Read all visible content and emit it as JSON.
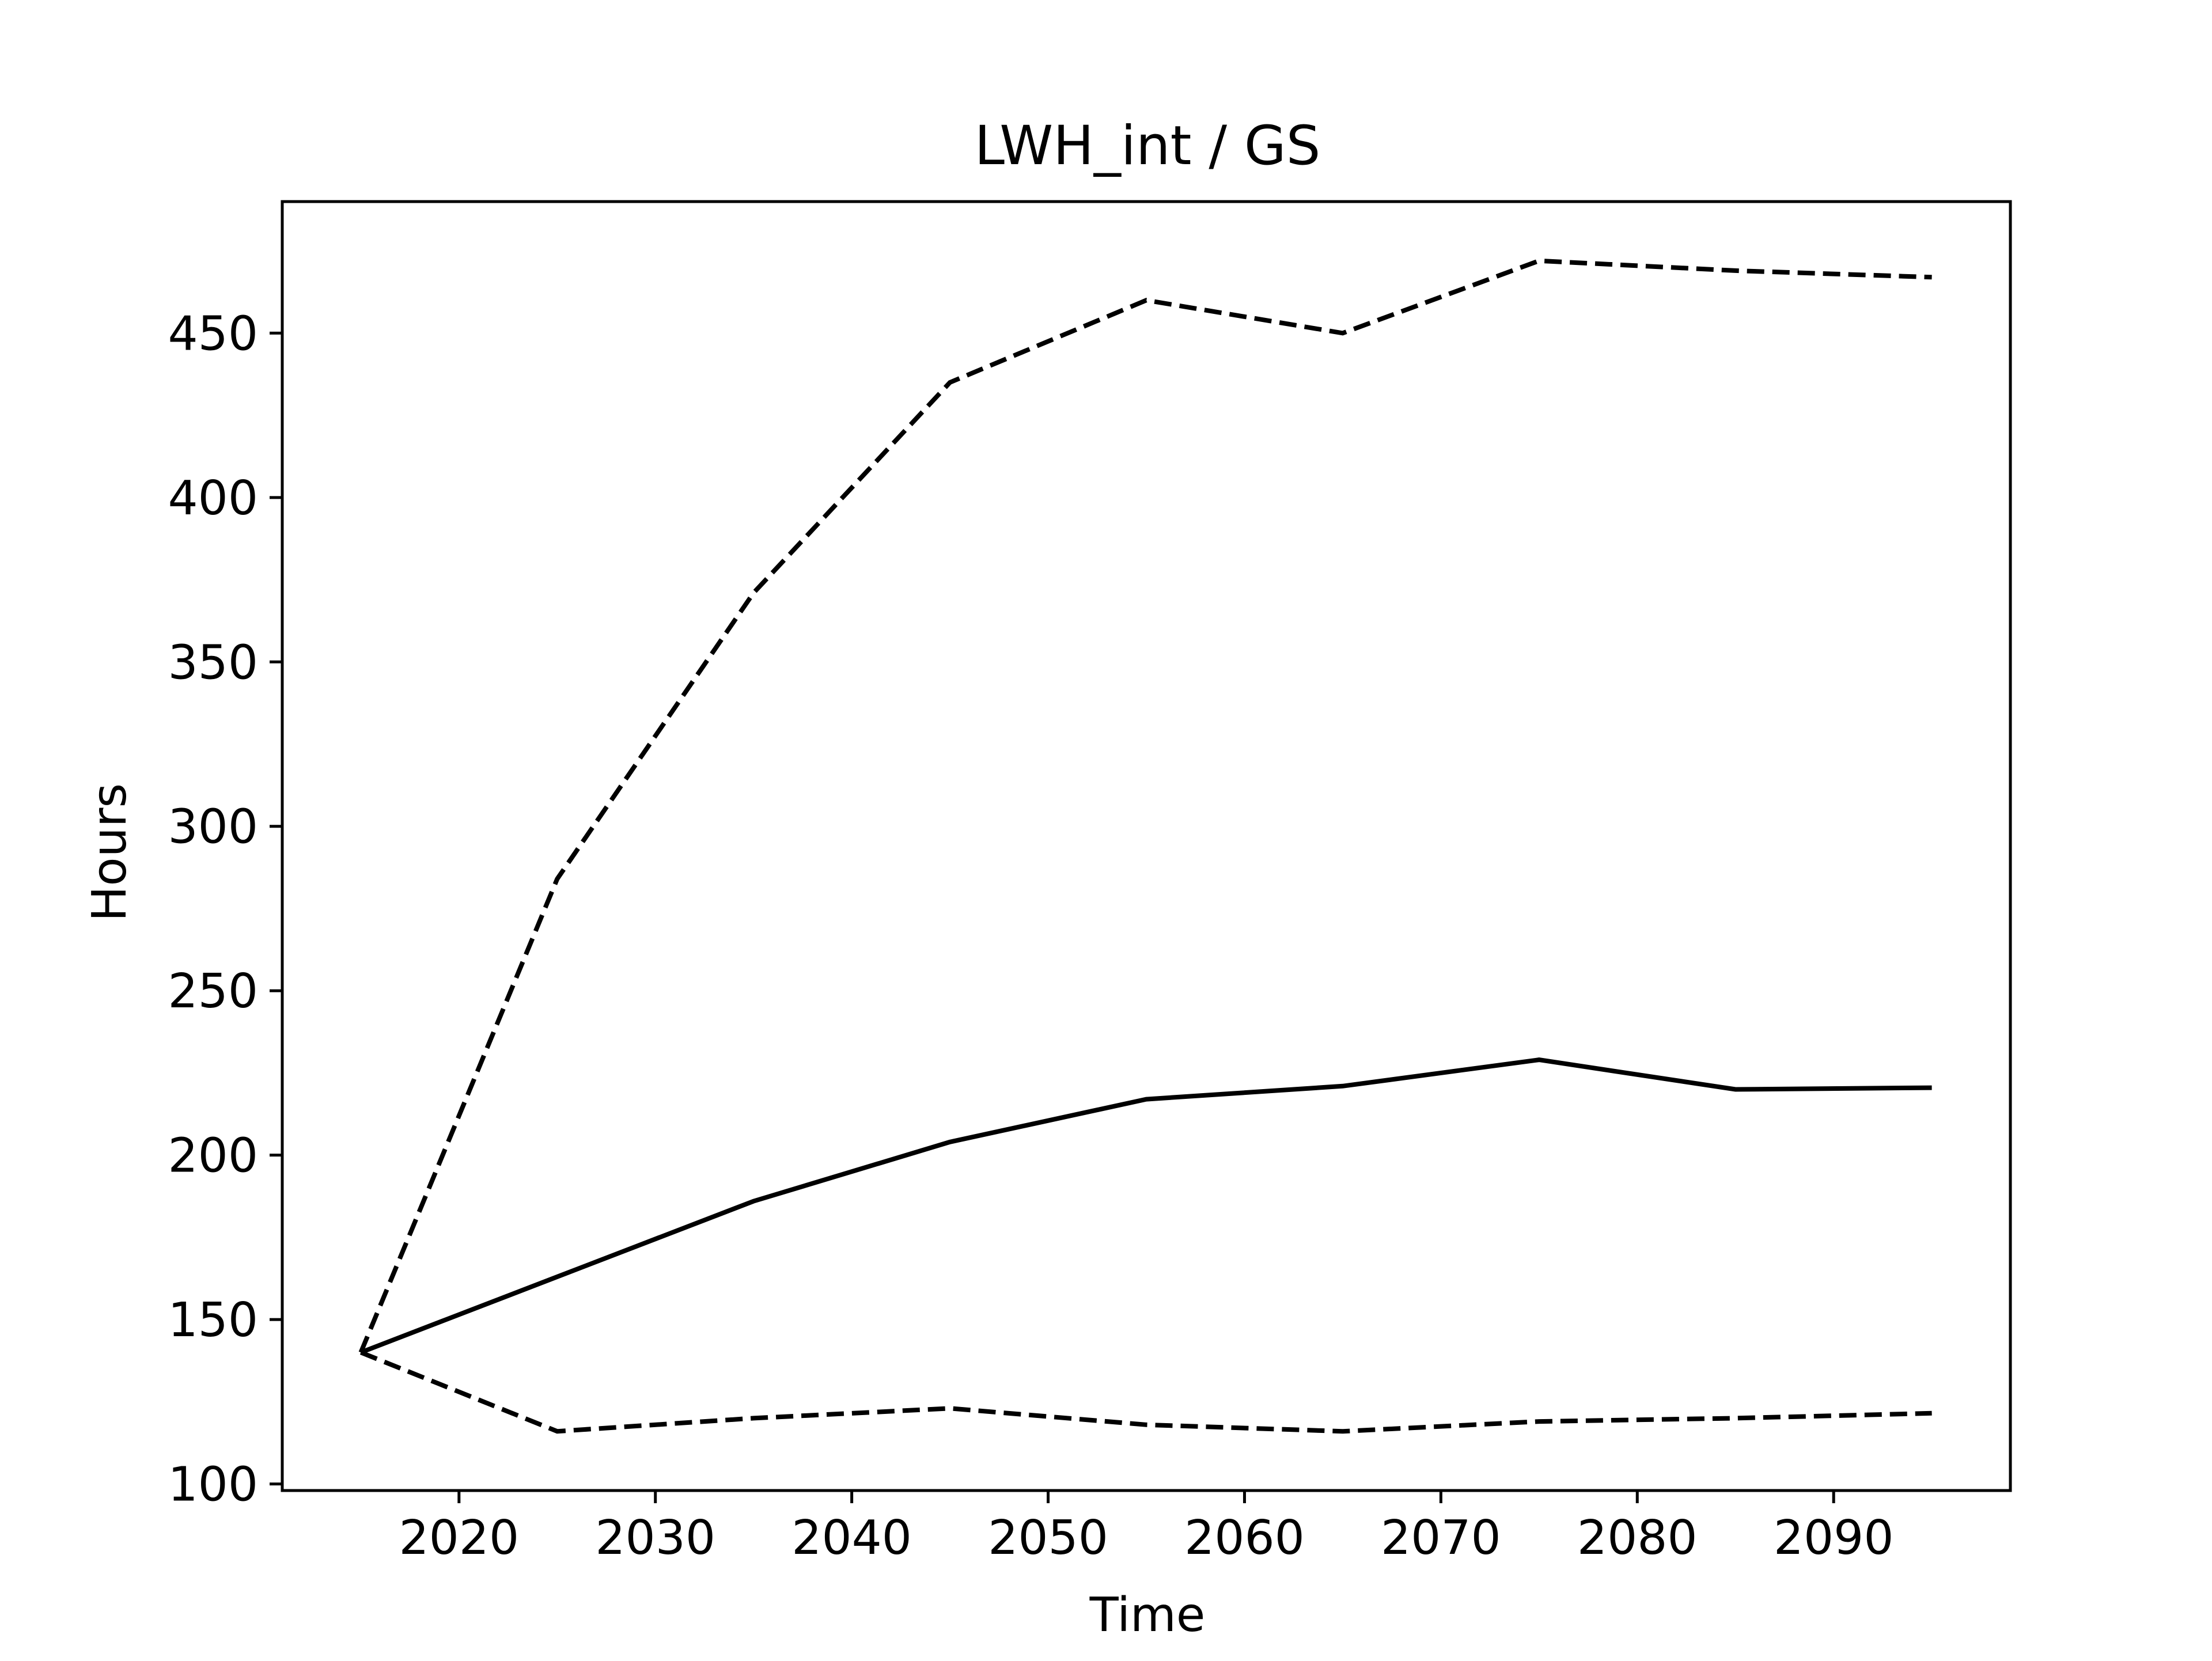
{
  "chart_data": {
    "type": "line",
    "title": "LWH_int / GS",
    "xlabel": "Time",
    "ylabel": "Hours",
    "xlim": [
      2011,
      2099
    ],
    "ylim": [
      98,
      490
    ],
    "xticks": [
      2020,
      2030,
      2040,
      2050,
      2060,
      2070,
      2080,
      2090
    ],
    "yticks": [
      100,
      150,
      200,
      250,
      300,
      350,
      400,
      450
    ],
    "grid": false,
    "legend": false,
    "colors": {
      "line": "#000000",
      "axes": "#000000",
      "background": "#ffffff"
    },
    "x": [
      2015,
      2025,
      2035,
      2045,
      2055,
      2065,
      2075,
      2085,
      2095
    ],
    "series": [
      {
        "style": "dashed",
        "values": [
          140,
          284,
          371,
          435,
          460,
          450,
          472,
          469,
          467
        ]
      },
      {
        "style": "solid",
        "values": [
          140,
          163,
          186,
          204,
          217,
          221,
          229,
          220,
          220.5
        ]
      },
      {
        "style": "dashed",
        "values": [
          140,
          116,
          120,
          123,
          118,
          116,
          119,
          120,
          121.5
        ]
      }
    ]
  }
}
